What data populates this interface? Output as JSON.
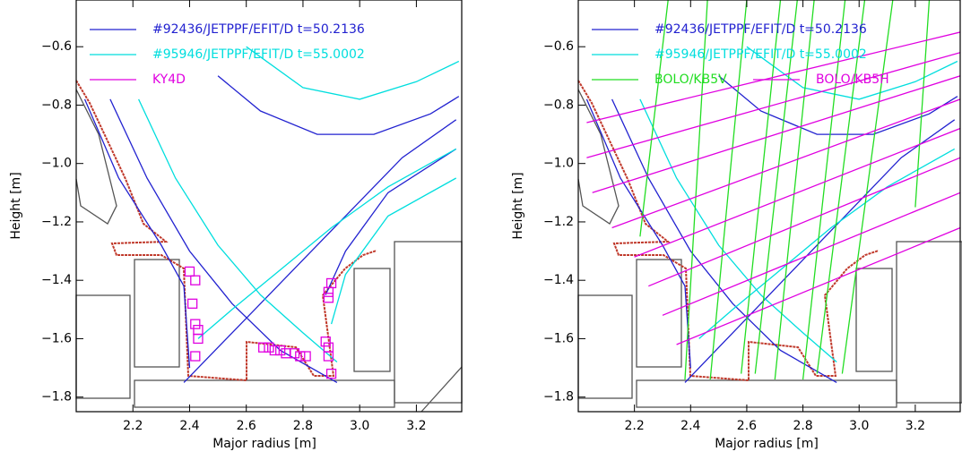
{
  "chart_data": [
    {
      "type": "line",
      "xlabel": "Major radius [m]",
      "ylabel": "Height [m]",
      "xlim": [
        2.0,
        3.36
      ],
      "ylim": [
        -1.85,
        -0.44
      ],
      "xticks": [
        2.2,
        2.4,
        2.6,
        2.8,
        {
          "value": 3.0,
          "label": "3.0"
        },
        3.2
      ],
      "yticks": [
        {
          "value": -0.6,
          "label": "−0.6"
        },
        {
          "value": -0.8,
          "label": "−0.8"
        },
        {
          "value": -1.0,
          "label": "−1.0"
        },
        {
          "value": -1.2,
          "label": "−1.2"
        },
        {
          "value": -1.4,
          "label": "−1.4"
        },
        {
          "value": -1.6,
          "label": "−1.6"
        },
        {
          "value": -1.8,
          "label": "−1.8"
        }
      ],
      "series": [
        {
          "name": "#92436/JETPPF/EFIT/D  t=50.2136",
          "color": "#2222d0",
          "x": [
            2.12,
            2.25,
            2.4,
            2.55,
            2.72,
            2.92,
            null,
            2.38,
            2.55,
            2.75,
            2.95,
            3.15,
            3.34,
            null,
            2.03,
            2.15,
            2.3,
            2.38,
            2.4,
            null,
            2.5,
            2.65,
            2.85,
            3.05,
            3.25,
            3.35,
            null,
            2.88,
            2.95,
            3.1,
            3.34
          ],
          "values": [
            -0.78,
            -1.05,
            -1.3,
            -1.48,
            -1.64,
            -1.75,
            null,
            -1.75,
            -1.58,
            -1.38,
            -1.18,
            -0.98,
            -0.85,
            null,
            -0.78,
            -1.05,
            -1.28,
            -1.42,
            -1.7,
            null,
            -0.7,
            -0.82,
            -0.9,
            -0.9,
            -0.83,
            -0.77,
            null,
            -1.45,
            -1.3,
            -1.1,
            -0.95
          ]
        },
        {
          "name": "#95946/JETPPF/EFIT/D  t=55.0002",
          "color": "#00dede",
          "x": [
            2.22,
            2.35,
            2.5,
            2.65,
            2.8,
            2.92,
            null,
            2.43,
            2.55,
            2.7,
            2.9,
            3.1,
            3.34,
            null,
            2.6,
            2.8,
            3.0,
            3.2,
            3.35,
            null,
            2.9,
            2.95,
            3.1,
            3.34
          ],
          "values": [
            -0.78,
            -1.05,
            -1.28,
            -1.45,
            -1.58,
            -1.68,
            null,
            -1.6,
            -1.5,
            -1.38,
            -1.22,
            -1.08,
            -0.95,
            null,
            -0.6,
            -0.74,
            -0.78,
            -0.72,
            -0.65,
            null,
            -1.55,
            -1.38,
            -1.18,
            -1.05
          ]
        },
        {
          "name": "KY4D",
          "color": "#e000e0",
          "marker": "square",
          "x": [
            2.4,
            2.42,
            2.41,
            2.42,
            2.43,
            2.43,
            2.42,
            2.66,
            2.68,
            2.7,
            2.72,
            2.74,
            2.77,
            2.79,
            2.81,
            2.9,
            2.89,
            2.89,
            2.88,
            2.89,
            2.89,
            2.9
          ],
          "values": [
            -1.37,
            -1.4,
            -1.48,
            -1.55,
            -1.57,
            -1.6,
            -1.66,
            -1.63,
            -1.63,
            -1.64,
            -1.64,
            -1.65,
            -1.65,
            -1.66,
            -1.66,
            -1.41,
            -1.44,
            -1.46,
            -1.61,
            -1.63,
            -1.66,
            -1.72
          ]
        }
      ]
    },
    {
      "type": "line",
      "xlabel": "Major radius [m]",
      "ylabel": "Height [m]",
      "xlim": [
        2.0,
        3.36
      ],
      "ylim": [
        -1.85,
        -0.44
      ],
      "xticks": [
        2.2,
        2.4,
        2.6,
        2.8,
        {
          "value": 3.0,
          "label": "3.0"
        },
        3.2
      ],
      "yticks": [
        {
          "value": -0.6,
          "label": "−0.6"
        },
        {
          "value": -0.8,
          "label": "−0.8"
        },
        {
          "value": -1.0,
          "label": "−1.0"
        },
        {
          "value": -1.2,
          "label": "−1.2"
        },
        {
          "value": -1.4,
          "label": "−1.4"
        },
        {
          "value": -1.6,
          "label": "−1.6"
        },
        {
          "value": -1.8,
          "label": "−1.8"
        }
      ],
      "series": [
        {
          "name": "#92436/JETPPF/EFIT/D  t=50.2136",
          "color": "#2222d0",
          "x": [
            2.12,
            2.25,
            2.4,
            2.55,
            2.72,
            2.92,
            null,
            2.38,
            2.55,
            2.75,
            2.95,
            3.15,
            3.34,
            null,
            2.03,
            2.15,
            2.3,
            2.38,
            2.4,
            null,
            2.5,
            2.65,
            2.85,
            3.05,
            3.25,
            3.35
          ],
          "values": [
            -0.78,
            -1.05,
            -1.3,
            -1.48,
            -1.64,
            -1.75,
            null,
            -1.75,
            -1.58,
            -1.38,
            -1.18,
            -0.98,
            -0.85,
            null,
            -0.78,
            -1.05,
            -1.28,
            -1.42,
            -1.7,
            null,
            -0.7,
            -0.82,
            -0.9,
            -0.9,
            -0.83,
            -0.77
          ]
        },
        {
          "name": "#95946/JETPPF/EFIT/D  t=55.0002",
          "color": "#00dede",
          "x": [
            2.22,
            2.35,
            2.5,
            2.65,
            2.8,
            2.92,
            null,
            2.43,
            2.55,
            2.7,
            2.9,
            3.1,
            3.34,
            null,
            2.6,
            2.8,
            3.0,
            3.2,
            3.35
          ],
          "values": [
            -0.78,
            -1.05,
            -1.28,
            -1.45,
            -1.58,
            -1.68,
            null,
            -1.6,
            -1.5,
            -1.38,
            -1.22,
            -1.08,
            -0.95,
            null,
            -0.6,
            -0.74,
            -0.78,
            -0.72,
            -0.65
          ]
        },
        {
          "name": "BOLO/KB5V",
          "color": "#22dd22",
          "x": [
            2.32,
            2.22,
            null,
            2.46,
            2.38,
            null,
            2.6,
            2.47,
            null,
            2.72,
            2.58,
            null,
            2.78,
            2.63,
            null,
            2.84,
            2.7,
            null,
            2.95,
            2.8,
            null,
            3.02,
            2.85,
            null,
            3.12,
            2.94,
            null,
            3.25,
            3.2
          ],
          "values": [
            -0.44,
            -1.25,
            null,
            -0.44,
            -1.74,
            null,
            -0.44,
            -1.74,
            null,
            -0.44,
            -1.72,
            null,
            -0.44,
            -1.72,
            null,
            -0.44,
            -1.74,
            null,
            -0.44,
            -1.74,
            null,
            -0.44,
            -1.72,
            null,
            -0.44,
            -1.72,
            null,
            -0.44,
            -1.15
          ]
        },
        {
          "name": "BOLO/KB5H",
          "color": "#e000e0",
          "x": [
            3.36,
            2.03,
            null,
            3.36,
            2.03,
            null,
            3.36,
            2.05,
            null,
            3.36,
            2.12,
            null,
            3.36,
            2.2,
            null,
            3.36,
            2.25,
            null,
            3.36,
            2.3,
            null,
            3.36,
            2.35
          ],
          "values": [
            -0.55,
            -0.86,
            null,
            -0.62,
            -0.98,
            null,
            -0.7,
            -1.1,
            null,
            -0.78,
            -1.22,
            null,
            -0.88,
            -1.32,
            null,
            -0.98,
            -1.42,
            null,
            -1.1,
            -1.52,
            null,
            -1.22,
            -1.62
          ]
        }
      ]
    }
  ]
}
